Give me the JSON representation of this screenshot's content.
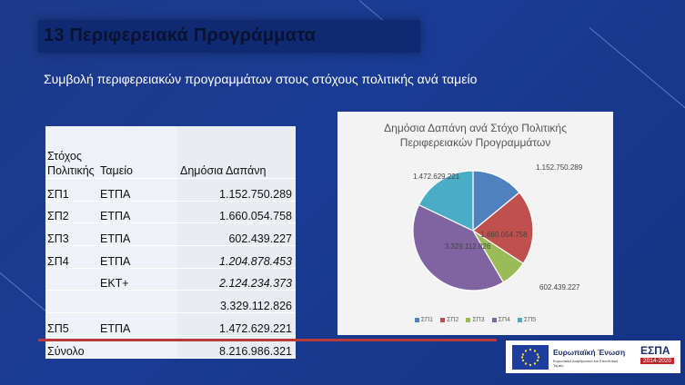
{
  "slide": {
    "title": "13 Περιφερειακά Προγράμματα",
    "subtitle": "Συμβολή περιφερειακών προγραμμάτων στους στόχους πολιτικής ανά ταμείο"
  },
  "table": {
    "headers": [
      "Στόχος Πολιτικής",
      "Ταμείο",
      "Δημόσια Δαπάνη"
    ],
    "rows": [
      {
        "goal": "ΣΠ1",
        "fund": "ΕΤΠΑ",
        "amount": "1.152.750.289",
        "italic": false
      },
      {
        "goal": "ΣΠ2",
        "fund": "ΕΤΠΑ",
        "amount": "1.660.054.758",
        "italic": false
      },
      {
        "goal": "ΣΠ3",
        "fund": "ΕΤΠΑ",
        "amount": "602.439.227",
        "italic": false
      },
      {
        "goal": "ΣΠ4",
        "fund": "ΕΤΠΑ",
        "amount": "1.204.878.453",
        "italic": true
      },
      {
        "goal": "",
        "fund": "ΕΚΤ+",
        "amount": "2.124.234.373",
        "italic": true
      },
      {
        "goal": "",
        "fund": "",
        "amount": "3.329.112.826",
        "italic": false
      },
      {
        "goal": "ΣΠ5",
        "fund": "ΕΤΠΑ",
        "amount": "1.472.629.221",
        "italic": false
      },
      {
        "goal": "Σύνολο",
        "fund": "",
        "amount": "8.216.986.321",
        "italic": false
      }
    ]
  },
  "chart_data": {
    "type": "pie",
    "title": "Δημόσια Δαπάνη ανά Στόχο Πολιτικής Περιφερειακών Προγραμμάτων",
    "categories": [
      "ΣΠ1",
      "ΣΠ2",
      "ΣΠ3",
      "ΣΠ4",
      "ΣΠ5"
    ],
    "values": [
      1152750289,
      1660054758,
      602439227,
      3329112826,
      1472629221
    ],
    "labels": [
      "1.152.750.289",
      "1.660.054.758",
      "602.439.227",
      "3.329.112.826",
      "1.472.629.221"
    ],
    "colors": [
      "#4f81bd",
      "#c0504d",
      "#9bbb59",
      "#8064a2",
      "#4bacc6"
    ],
    "legend": "bottom"
  },
  "logos": {
    "eu_name": "Ευρωπαϊκή Ένωση",
    "eu_fund": "Ευρωπαϊκό Διαρθρωτικό και Επενδυτικό Ταμείο",
    "espa_name": "ΕΣΠΑ",
    "espa_years": "2014-2020"
  }
}
